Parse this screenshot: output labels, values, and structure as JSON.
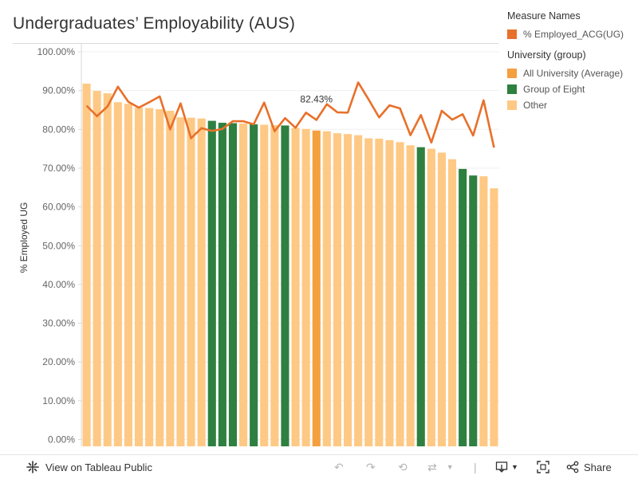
{
  "title": "Undergraduates’ Employability (AUS)",
  "legend": {
    "measure_title": "Measure Names",
    "measure_items": [
      {
        "label": "% Employed_ACG(UG)",
        "color": "#e8702a"
      }
    ],
    "group_title": "University (group)",
    "group_items": [
      {
        "label": "All University (Average)",
        "color": "#f5a03e"
      },
      {
        "label": "Group of Eight",
        "color": "#2e8040"
      },
      {
        "label": "Other",
        "color": "#fec985"
      }
    ]
  },
  "footer": {
    "view_label": "View on Tableau Public",
    "share_label": "Share",
    "icons": [
      "tableau-logo-icon",
      "undo-icon",
      "redo-icon",
      "revert-icon",
      "refresh-icon",
      "pause-icon",
      "download-icon",
      "fullscreen-icon",
      "share-icon"
    ]
  },
  "chart_data": {
    "type": "bar",
    "ylabel": "% Employed UG",
    "ylim": [
      0,
      100
    ],
    "ytick_labels": [
      "0.00%",
      "10.00%",
      "20.00%",
      "30.00%",
      "40.00%",
      "50.00%",
      "60.00%",
      "70.00%",
      "80.00%",
      "90.00%",
      "100.00%"
    ],
    "ytick_values": [
      0,
      10,
      20,
      30,
      40,
      50,
      60,
      70,
      80,
      90,
      100
    ],
    "grid": true,
    "group_colors": {
      "avg": "#f5a03e",
      "go8": "#2e8040",
      "other": "#fec985"
    },
    "bars": [
      {
        "value": 91.8,
        "group": "other"
      },
      {
        "value": 89.9,
        "group": "other"
      },
      {
        "value": 89.3,
        "group": "other"
      },
      {
        "value": 87.0,
        "group": "other"
      },
      {
        "value": 86.6,
        "group": "other"
      },
      {
        "value": 85.6,
        "group": "other"
      },
      {
        "value": 85.5,
        "group": "other"
      },
      {
        "value": 85.2,
        "group": "other"
      },
      {
        "value": 84.8,
        "group": "other"
      },
      {
        "value": 83.1,
        "group": "other"
      },
      {
        "value": 83.0,
        "group": "other"
      },
      {
        "value": 82.8,
        "group": "other"
      },
      {
        "value": 82.2,
        "group": "go8"
      },
      {
        "value": 81.7,
        "group": "go8"
      },
      {
        "value": 81.6,
        "group": "go8"
      },
      {
        "value": 81.5,
        "group": "other"
      },
      {
        "value": 81.3,
        "group": "go8"
      },
      {
        "value": 81.2,
        "group": "other"
      },
      {
        "value": 81.1,
        "group": "other"
      },
      {
        "value": 81.0,
        "group": "go8"
      },
      {
        "value": 80.4,
        "group": "other"
      },
      {
        "value": 80.1,
        "group": "other"
      },
      {
        "value": 79.7,
        "group": "avg"
      },
      {
        "value": 79.5,
        "group": "other"
      },
      {
        "value": 79.0,
        "group": "other"
      },
      {
        "value": 78.8,
        "group": "other"
      },
      {
        "value": 78.5,
        "group": "other"
      },
      {
        "value": 77.7,
        "group": "other"
      },
      {
        "value": 77.6,
        "group": "other"
      },
      {
        "value": 77.2,
        "group": "other"
      },
      {
        "value": 76.7,
        "group": "other"
      },
      {
        "value": 75.9,
        "group": "other"
      },
      {
        "value": 75.4,
        "group": "go8"
      },
      {
        "value": 75.0,
        "group": "other"
      },
      {
        "value": 74.0,
        "group": "other"
      },
      {
        "value": 72.3,
        "group": "other"
      },
      {
        "value": 69.8,
        "group": "go8"
      },
      {
        "value": 68.1,
        "group": "go8"
      },
      {
        "value": 67.9,
        "group": "other"
      },
      {
        "value": 64.8,
        "group": "other"
      }
    ],
    "series": [
      {
        "name": "% Employed_ACG(UG)",
        "color": "#e8702a",
        "values": [
          86.1,
          83.4,
          85.9,
          91.0,
          87.1,
          85.6,
          87.0,
          88.5,
          80.0,
          86.7,
          77.7,
          80.3,
          79.6,
          80.1,
          82.1,
          82.1,
          81.3,
          86.9,
          79.5,
          82.9,
          80.4,
          84.3,
          82.43,
          86.5,
          84.4,
          84.3,
          92.1,
          87.7,
          83.1,
          86.2,
          85.4,
          78.5,
          83.7,
          76.6,
          84.8,
          82.5,
          83.9,
          78.4,
          87.5,
          75.3
        ]
      }
    ],
    "annotation": {
      "index": 22,
      "label": "82.43%"
    }
  }
}
